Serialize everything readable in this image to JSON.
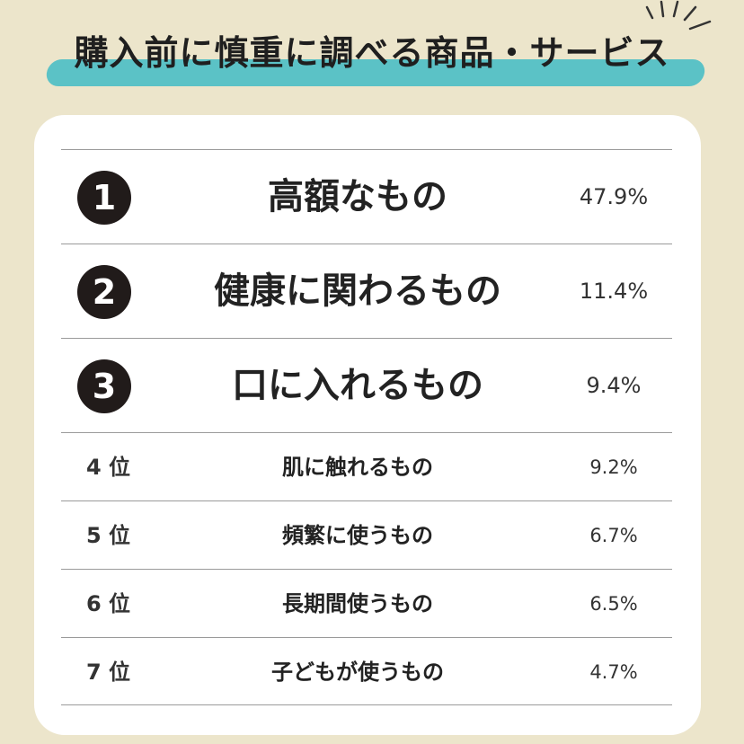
{
  "title": "購入前に慎重に調べる商品・サービス",
  "top_items": [
    {
      "badge": "1",
      "label": "高額なもの",
      "percent": "47.9%"
    },
    {
      "badge": "2",
      "label": "健康に関わるもの",
      "percent": "11.4%"
    },
    {
      "badge": "3",
      "label": "口に入れるもの",
      "percent": "9.4%"
    }
  ],
  "other_items": [
    {
      "rank": "4 位",
      "label": "肌に触れるもの",
      "percent": "9.2%"
    },
    {
      "rank": "5 位",
      "label": "頻繁に使うもの",
      "percent": "6.7%"
    },
    {
      "rank": "6 位",
      "label": "長期間使うもの",
      "percent": "6.5%"
    },
    {
      "rank": "7 位",
      "label": "子どもが使うもの",
      "percent": "4.7%"
    }
  ],
  "colors": {
    "background": "#ece5cb",
    "stripe": "#5bc2c6",
    "badge": "#211b1a",
    "card": "#ffffff"
  }
}
